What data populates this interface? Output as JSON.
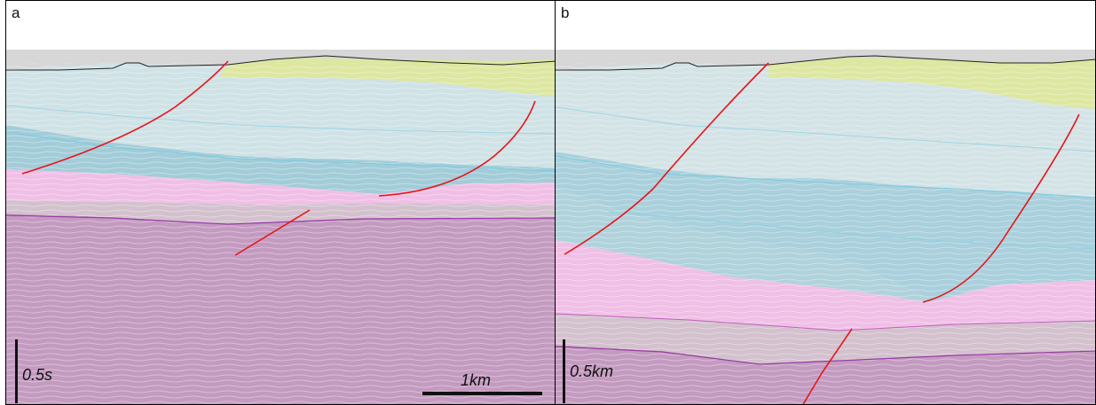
{
  "panels": [
    {
      "letter": "a",
      "vertical_scale": "0.5s",
      "horizontal_scale": "1km"
    },
    {
      "letter": "b",
      "vertical_scale": "0.5km"
    }
  ],
  "colors": {
    "surface_gray": "#d7d7d7",
    "unit_yellow": "#dde7a1",
    "unit_blue_light": "#cfe2e6",
    "unit_blue_mid": "#b7d8df",
    "unit_blue_deep": "#a2ccd8",
    "unit_pink": "#f0bfe6",
    "unit_gray_band": "#d3c1cd",
    "unit_purple": "#c49bc0",
    "fault": "#e8141a",
    "horizon_purple": "#9a3aa6",
    "horizon_cyan": "#7ccbe0"
  },
  "icons": [
    "fault-line",
    "vertical-scale-bar",
    "horizontal-scale-bar"
  ]
}
